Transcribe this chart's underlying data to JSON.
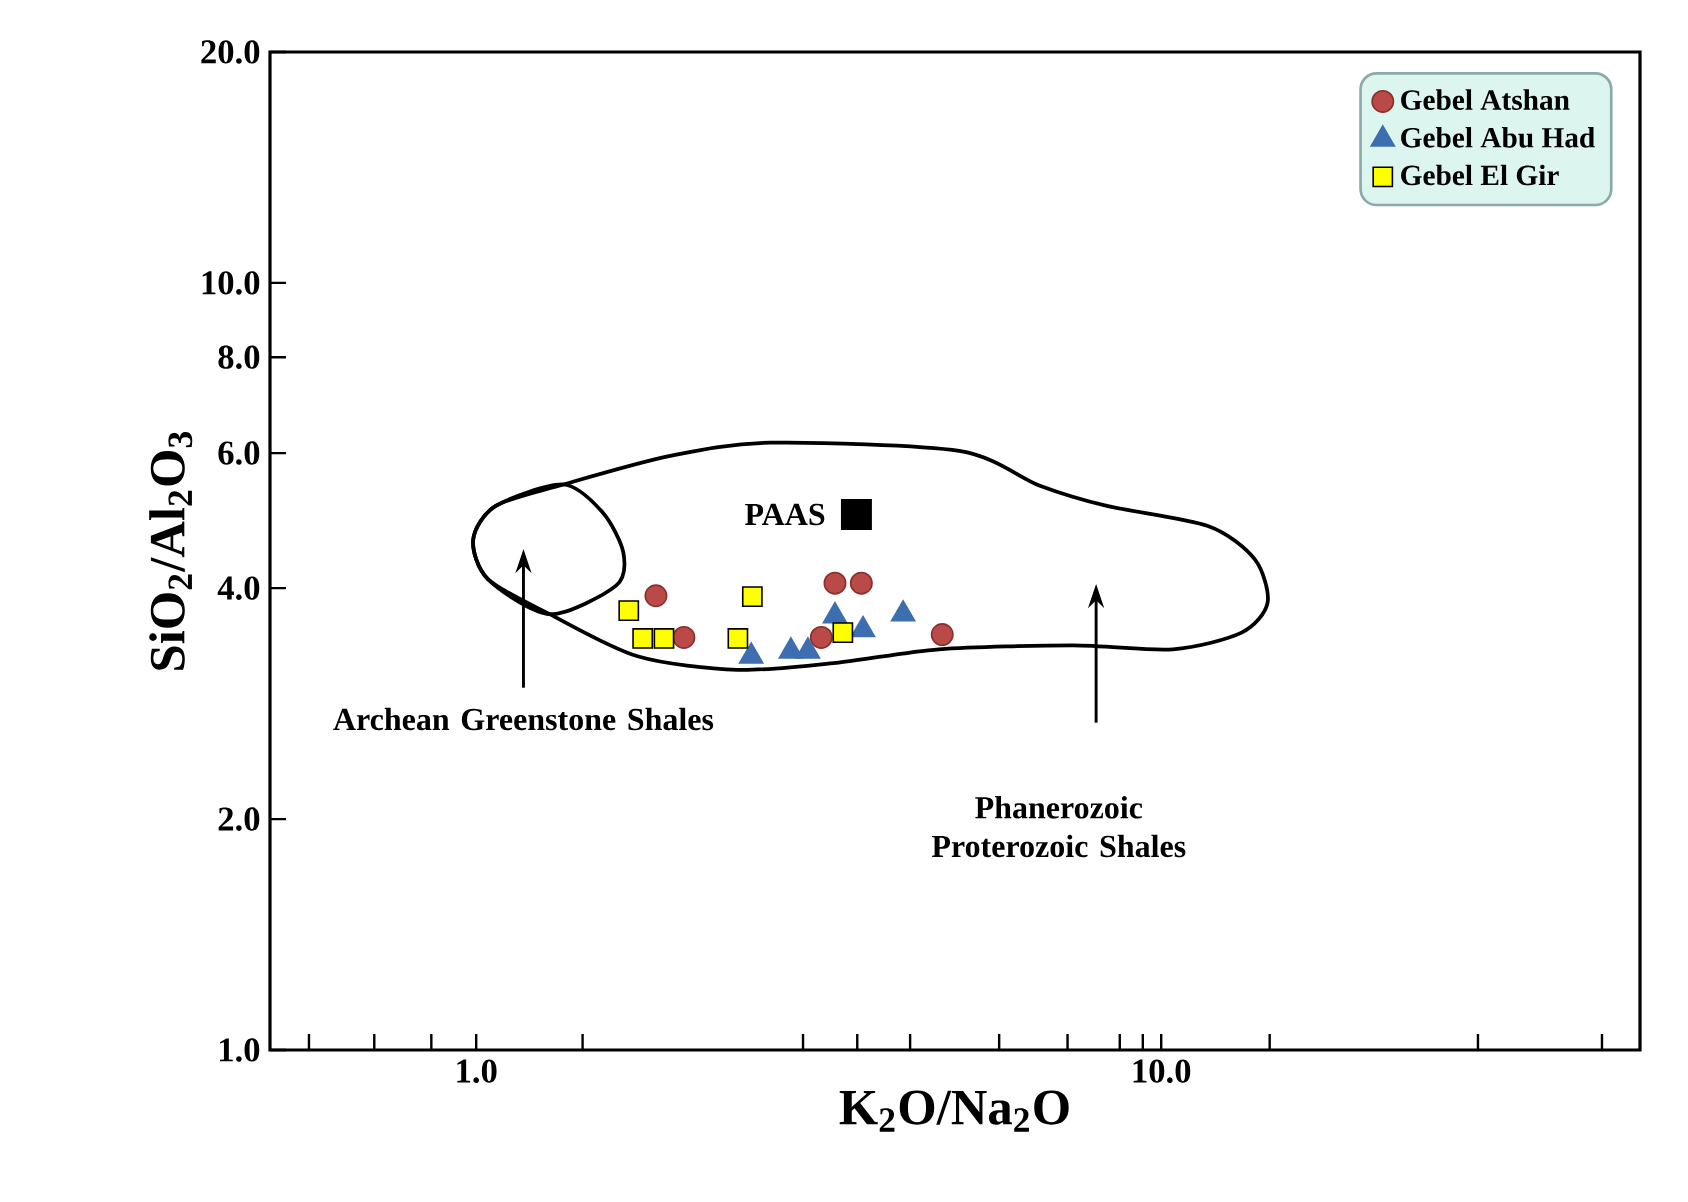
{
  "chart_data": {
    "type": "scatter",
    "xlabel": "K$_{2}$O/Na$_{2}$O",
    "ylabel": "SiO$_{2}$/Al$_{2}$O$_{3}$",
    "log": "xy",
    "legend": "top right",
    "xlim": [
      0.5,
      50
    ],
    "ylim": [
      1,
      20
    ],
    "xticks": [
      {
        "value": 0.57,
        "label": null
      },
      {
        "value": 0.71,
        "label": null
      },
      {
        "value": 0.86,
        "label": null
      },
      {
        "value": 1,
        "label": "1.0"
      },
      {
        "value": 1.43,
        "label": null
      },
      {
        "value": 3,
        "label": null
      },
      {
        "value": 3.6,
        "label": null
      },
      {
        "value": 4.3,
        "label": null
      },
      {
        "value": 5.8,
        "label": null
      },
      {
        "value": 7.3,
        "label": null
      },
      {
        "value": 8.7,
        "label": null
      },
      {
        "value": 9.4,
        "label": null
      },
      {
        "value": 10,
        "label": "10.0"
      },
      {
        "value": 14.4,
        "label": null
      },
      {
        "value": 29,
        "label": null
      },
      {
        "value": 44,
        "label": null
      }
    ],
    "yticks": [
      {
        "value": 1,
        "label": "1.0"
      },
      {
        "value": 2,
        "label": "2.0"
      },
      {
        "value": 4,
        "label": "4.0"
      },
      {
        "value": 6,
        "label": "6.0"
      },
      {
        "value": 8,
        "label": "8.0"
      },
      {
        "value": 10,
        "label": "10.0"
      },
      {
        "value": 20,
        "label": "20.0"
      }
    ],
    "series": [
      {
        "name": "Gebel Atshan",
        "type": "scatter",
        "marker": "circle",
        "color": "#b94a48",
        "x": [
          1.83,
          2.01,
          3.34,
          3.65,
          3.19,
          4.79
        ],
        "values": [
          3.91,
          3.45,
          4.06,
          4.06,
          3.45,
          3.48
        ]
      },
      {
        "name": "Gebel  Abu Had",
        "type": "scatter",
        "marker": "triangle",
        "color": "#3d6fb0",
        "x": [
          2.52,
          2.88,
          3.05,
          3.34,
          3.67,
          4.2
        ],
        "values": [
          3.26,
          3.31,
          3.31,
          3.68,
          3.53,
          3.7
        ]
      },
      {
        "name": "Gebel El Gir",
        "type": "scatter",
        "marker": "square",
        "color": "#ffff00",
        "x": [
          1.67,
          1.75,
          1.88,
          2.53,
          2.41,
          3.43
        ],
        "values": [
          3.74,
          3.44,
          3.44,
          3.9,
          3.44,
          3.5
        ]
      },
      {
        "type": "scatter",
        "marker": "square",
        "color": "#000000",
        "x": [
          3.59
        ],
        "values": [
          4.99
        ]
      }
    ],
    "annotations": [
      {
        "text": "PAAS",
        "x": 3.59,
        "y": 4.99
      },
      "Archean Greenstone Shales",
      "Phanerozoic Proterozoic Shales"
    ]
  }
}
